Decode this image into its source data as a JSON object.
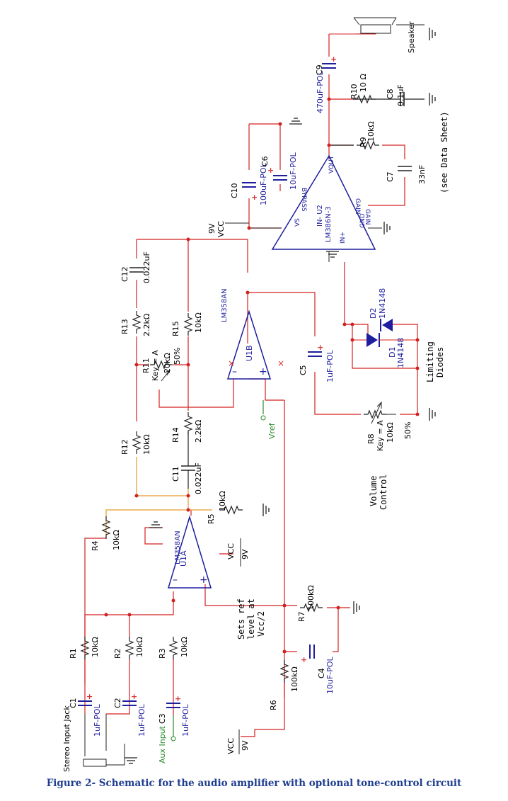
{
  "caption": "Figure 2- Schematic for the audio amplifier with optional tone-control circuit",
  "colors": {
    "wire": "#d42020",
    "component": "#1e1e9e",
    "label": "#000000",
    "value": "#1e1e9e",
    "tone_wire": "#e69a2e",
    "net": "#2a8a2a"
  },
  "components": {
    "R1": {
      "ref": "R1",
      "value": "10kΩ"
    },
    "R2": {
      "ref": "R2",
      "value": "10kΩ"
    },
    "R3": {
      "ref": "R3",
      "value": "10kΩ"
    },
    "R4": {
      "ref": "R4",
      "value": "10kΩ"
    },
    "R5": {
      "ref": "R5",
      "value": "10kΩ"
    },
    "R6": {
      "ref": "R6",
      "value": "100kΩ"
    },
    "R7": {
      "ref": "R7",
      "value": "100kΩ"
    },
    "R8": {
      "ref": "R8",
      "key": "Key = A",
      "value": "10kΩ",
      "pct": "50%"
    },
    "R9": {
      "ref": "R9",
      "value": "10kΩ"
    },
    "R10": {
      "ref": "R10",
      "value": "10 Ω"
    },
    "R11": {
      "ref": "R11",
      "key": "Key = A",
      "value": "20kΩ",
      "pct": "50%"
    },
    "R12": {
      "ref": "R12",
      "value": "10kΩ"
    },
    "R13": {
      "ref": "R13",
      "value": "2.2kΩ"
    },
    "R14": {
      "ref": "R14",
      "value": "2.2kΩ"
    },
    "R15": {
      "ref": "R15",
      "value": "10kΩ"
    },
    "C1": {
      "ref": "C1",
      "value": "1uF-POL"
    },
    "C2": {
      "ref": "C2",
      "value": "1uF-POL"
    },
    "C3": {
      "ref": "C3",
      "value": "1uF-POL"
    },
    "C4": {
      "ref": "C4",
      "value": "10uF-POL"
    },
    "C5": {
      "ref": "C5",
      "value": "1uF-POL"
    },
    "C6": {
      "ref": "C6",
      "value": "10uF-POL"
    },
    "C7": {
      "ref": "C7",
      "value": "33nF",
      "note": "(see Data Sheet)"
    },
    "C8": {
      "ref": "C8",
      "value": "0.1uF"
    },
    "C9": {
      "ref": "C9",
      "value": "470uF-POL"
    },
    "C10": {
      "ref": "C10",
      "value": "100uF-POL"
    },
    "C11": {
      "ref": "C11",
      "value": "0.022uF"
    },
    "C12": {
      "ref": "C12",
      "value": "0.022uF"
    },
    "D1": {
      "ref": "D1",
      "value": "1N4148"
    },
    "D2": {
      "ref": "D2",
      "value": "1N4148"
    },
    "U1A": {
      "ref": "U1A",
      "part": "LM358AN"
    },
    "U1B": {
      "ref": "U1B",
      "part": "LM358AN"
    },
    "U2": {
      "ref": "IN-  U2",
      "part": "LM386N-3",
      "pins": {
        "in_minus": "IN-",
        "in_plus": "IN+",
        "vs": "VS",
        "gnd": "GND",
        "vout": "VOUT",
        "bypass": "BYPASS",
        "gain1": "GAIN",
        "gain8": "GAIN"
      }
    }
  },
  "labels": {
    "stereo_jack": "Stereo Input Jack",
    "aux_input": "Aux Input",
    "vref": "Vref",
    "vcc": "VCC",
    "nine_v": "9V",
    "speaker": "Speaker",
    "limiting": "Limiting",
    "diodes": "Diodes",
    "volume": "Volume",
    "control": "Control",
    "sets_ref": "Sets ref",
    "level_at": "level at",
    "vcc2": "Vcc/2"
  }
}
